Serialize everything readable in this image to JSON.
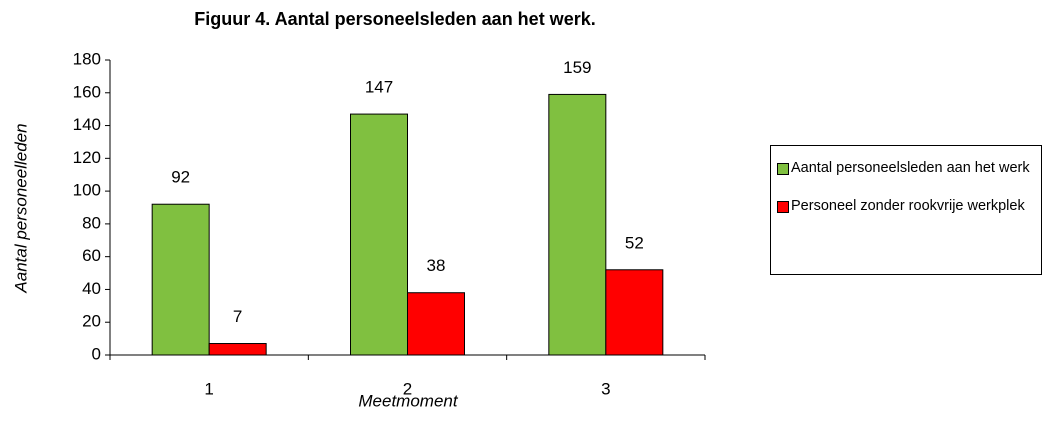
{
  "chart_data": {
    "type": "bar",
    "title": "Figuur 4. Aantal personeelsleden aan het werk.",
    "xlabel": "Meetmoment",
    "ylabel": "Aantal personeelleden",
    "categories": [
      "1",
      "2",
      "3"
    ],
    "series": [
      {
        "name": "Aantal personeelsleden aan het werk",
        "color": "#80c040",
        "values": [
          92,
          147,
          159
        ]
      },
      {
        "name": "Personeel zonder rookvrije werkplek",
        "color": "#ff0000",
        "values": [
          7,
          38,
          52
        ]
      }
    ],
    "ylim": [
      0,
      180
    ],
    "yticks": [
      0,
      20,
      40,
      60,
      80,
      100,
      120,
      140,
      160,
      180
    ],
    "grid": false,
    "legend": "right"
  }
}
